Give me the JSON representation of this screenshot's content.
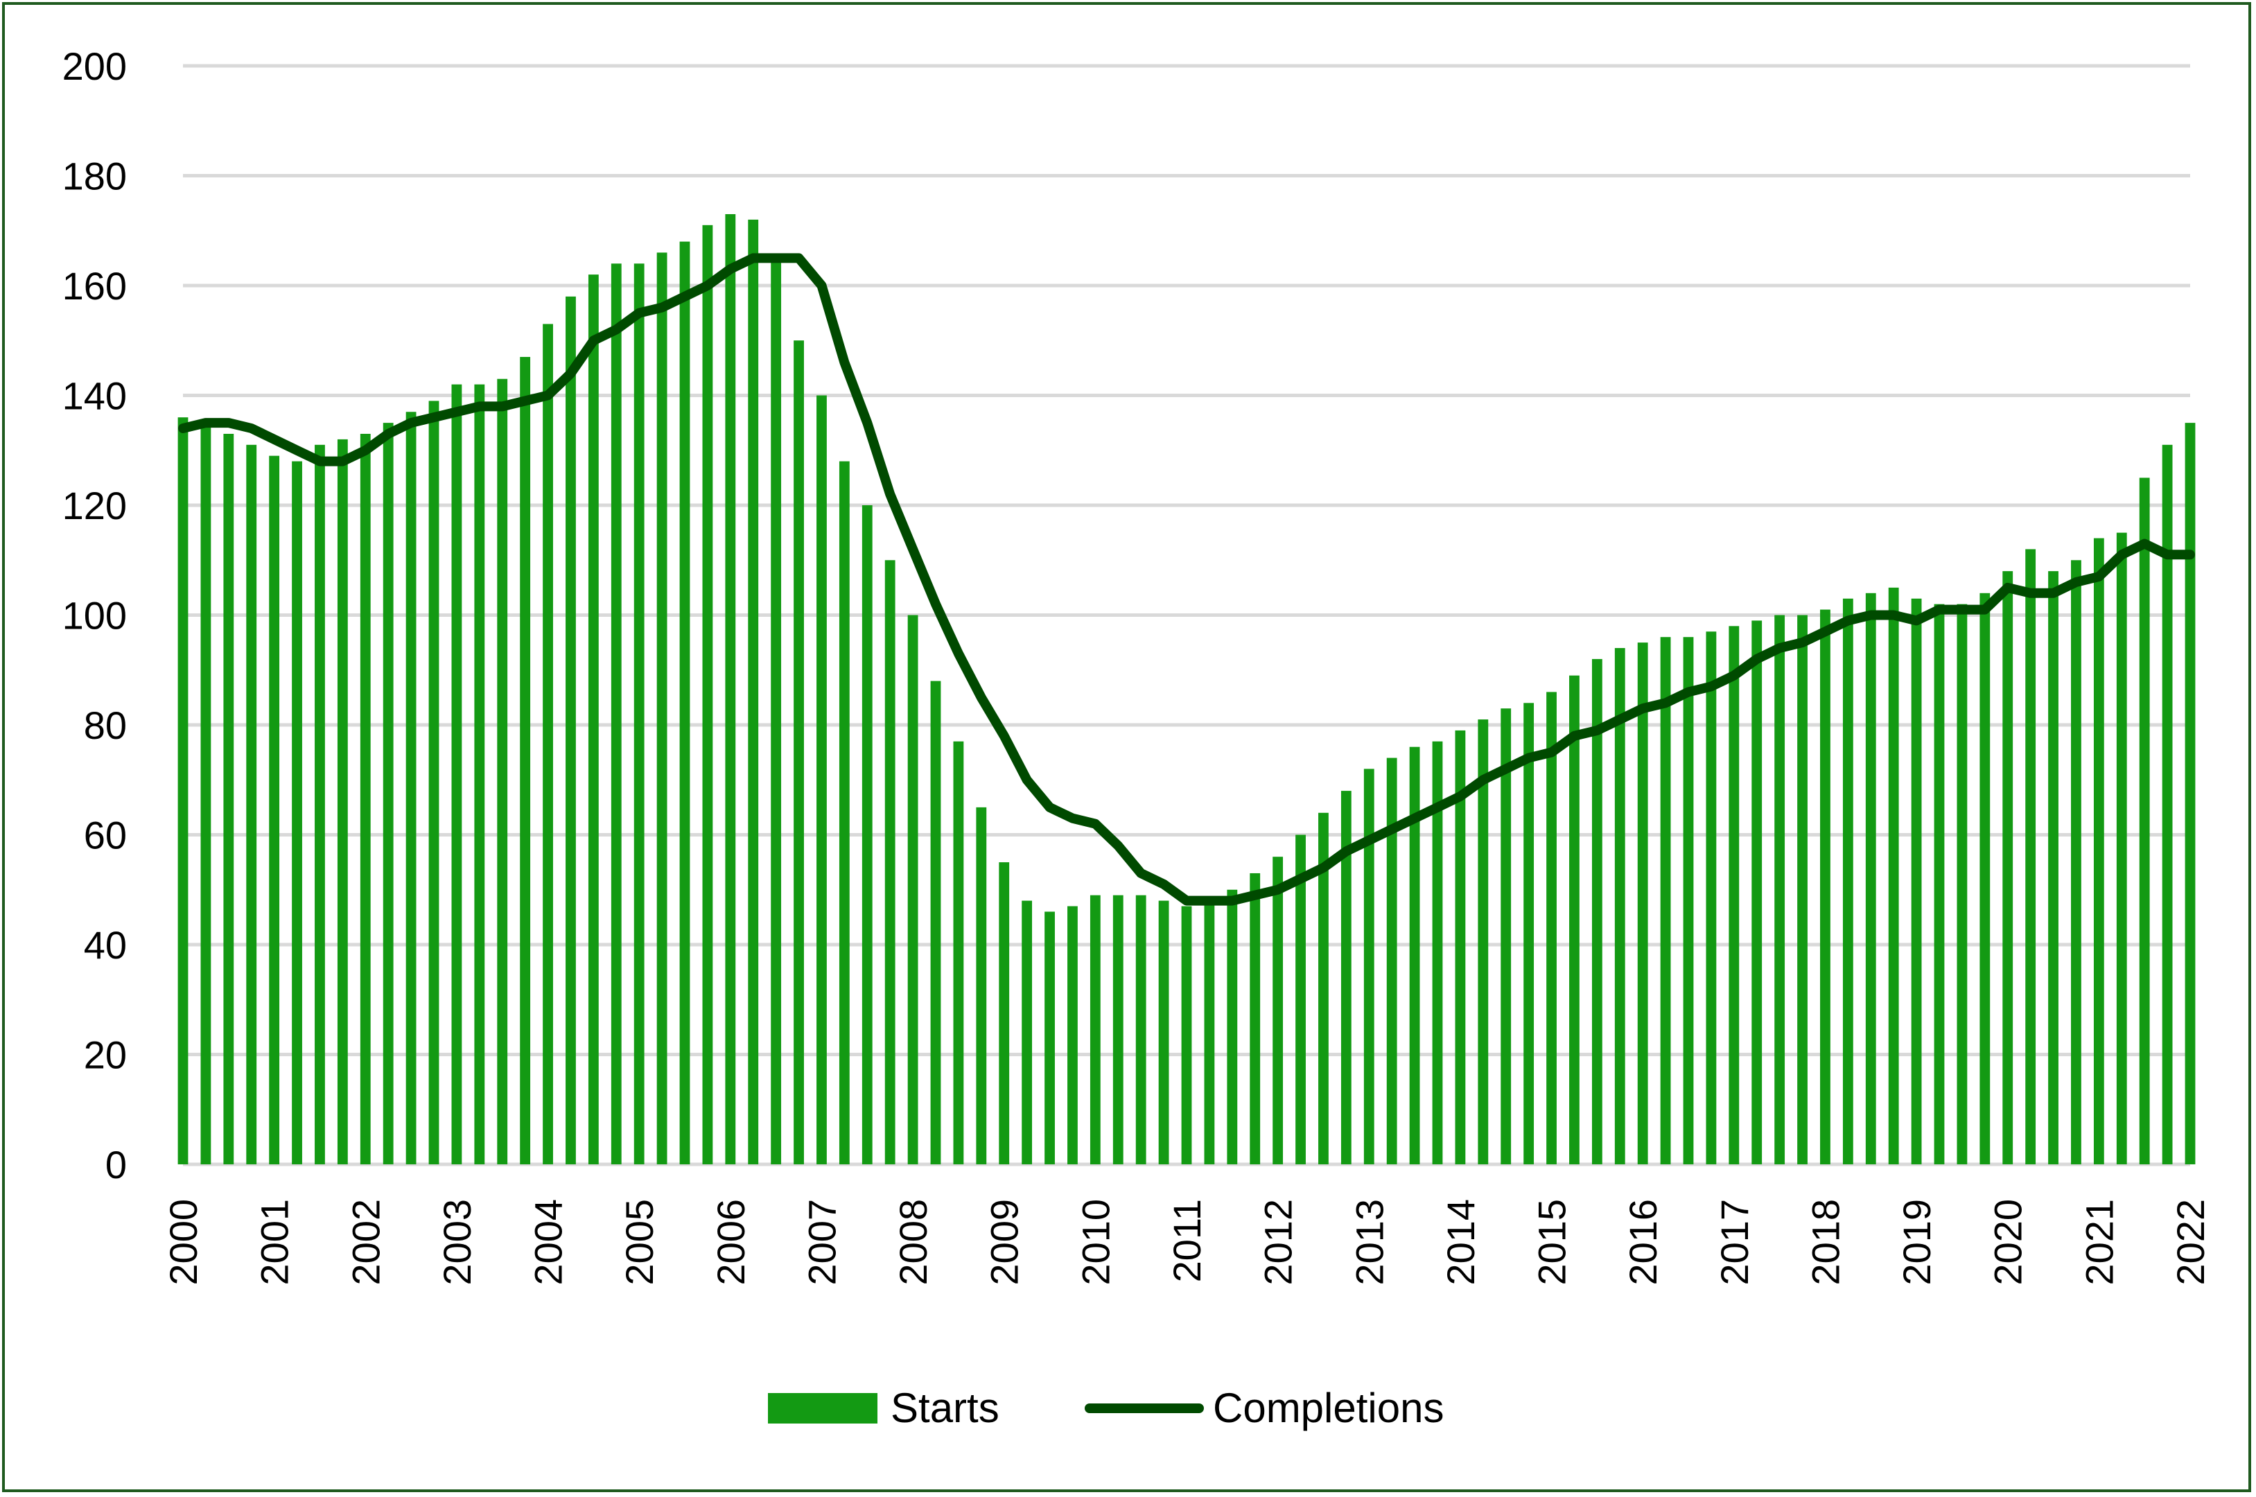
{
  "chart_data": {
    "type": "bar+line",
    "title": "",
    "xlabel": "",
    "ylabel": "",
    "ylim": [
      0,
      200
    ],
    "yticks": [
      0,
      20,
      40,
      60,
      80,
      100,
      120,
      140,
      160,
      180,
      200
    ],
    "xticks": [
      "2000",
      "2001",
      "2002",
      "2003",
      "2004",
      "2005",
      "2006",
      "2007",
      "2008",
      "2009",
      "2010",
      "2011",
      "2012",
      "2013",
      "2014",
      "2015",
      "2016",
      "2017",
      "2018",
      "2019",
      "2020",
      "2021",
      "2022"
    ],
    "grid": true,
    "legend_position": "bottom",
    "x_start": 2000,
    "x_step": 0.25,
    "series": [
      {
        "name": "Starts",
        "type": "bar",
        "color": "#139a13",
        "values": [
          136,
          135,
          133,
          131,
          129,
          128,
          131,
          132,
          133,
          135,
          137,
          139,
          142,
          142,
          143,
          147,
          153,
          158,
          162,
          164,
          164,
          166,
          168,
          171,
          173,
          172,
          165,
          150,
          140,
          128,
          120,
          110,
          100,
          88,
          77,
          65,
          55,
          48,
          46,
          47,
          49,
          49,
          49,
          48,
          47,
          48,
          50,
          53,
          56,
          60,
          64,
          68,
          72,
          74,
          76,
          77,
          79,
          81,
          83,
          84,
          86,
          89,
          92,
          94,
          95,
          96,
          96,
          97,
          98,
          99,
          100,
          100,
          101,
          103,
          104,
          105,
          103,
          102,
          102,
          104,
          108,
          112,
          108,
          110,
          114,
          115,
          125,
          131,
          135
        ]
      },
      {
        "name": "Completions",
        "type": "line",
        "color": "#004a00",
        "values": [
          134,
          135,
          135,
          134,
          132,
          130,
          128,
          128,
          130,
          133,
          135,
          136,
          137,
          138,
          138,
          139,
          140,
          144,
          150,
          152,
          155,
          156,
          158,
          160,
          163,
          165,
          165,
          165,
          160,
          146,
          135,
          122,
          112,
          102,
          93,
          85,
          78,
          70,
          65,
          63,
          62,
          58,
          53,
          51,
          48,
          48,
          48,
          49,
          50,
          52,
          54,
          57,
          59,
          61,
          63,
          65,
          67,
          70,
          72,
          74,
          75,
          78,
          79,
          81,
          83,
          84,
          86,
          87,
          89,
          92,
          94,
          95,
          97,
          99,
          100,
          100,
          99,
          101,
          101,
          101,
          105,
          104,
          104,
          106,
          107,
          111,
          113,
          111,
          111
        ]
      }
    ]
  }
}
